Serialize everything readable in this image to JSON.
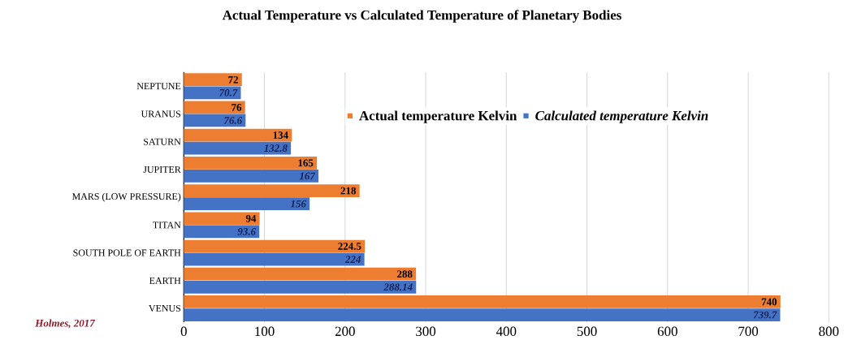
{
  "chart_data": {
    "type": "bar",
    "orientation": "horizontal",
    "title": "Actual Temperature vs Calculated Temperature of Planetary Bodies",
    "categories": [
      "NEPTUNE",
      "URANUS",
      "SATURN",
      "JUPITER",
      "MARS (LOW PRESSURE)",
      "TITAN",
      "SOUTH POLE OF EARTH",
      "EARTH",
      "VENUS"
    ],
    "series": [
      {
        "name": "Actual temperature Kelvin",
        "color": "#ed7d31",
        "values": [
          72,
          76,
          134,
          165,
          218,
          94,
          224.5,
          288,
          740
        ]
      },
      {
        "name": "Calculated temperature Kelvin",
        "color": "#4472c4",
        "values": [
          70.7,
          76.6,
          132.8,
          167,
          156,
          93.6,
          224,
          288.14,
          739.7
        ]
      }
    ],
    "xlim": [
      0,
      800
    ],
    "xticks": [
      0,
      100,
      200,
      300,
      400,
      500,
      600,
      700,
      800
    ],
    "grid": "x",
    "legend": "top right",
    "data_labels": true,
    "annotations": [
      "Holmes, 2017"
    ]
  }
}
